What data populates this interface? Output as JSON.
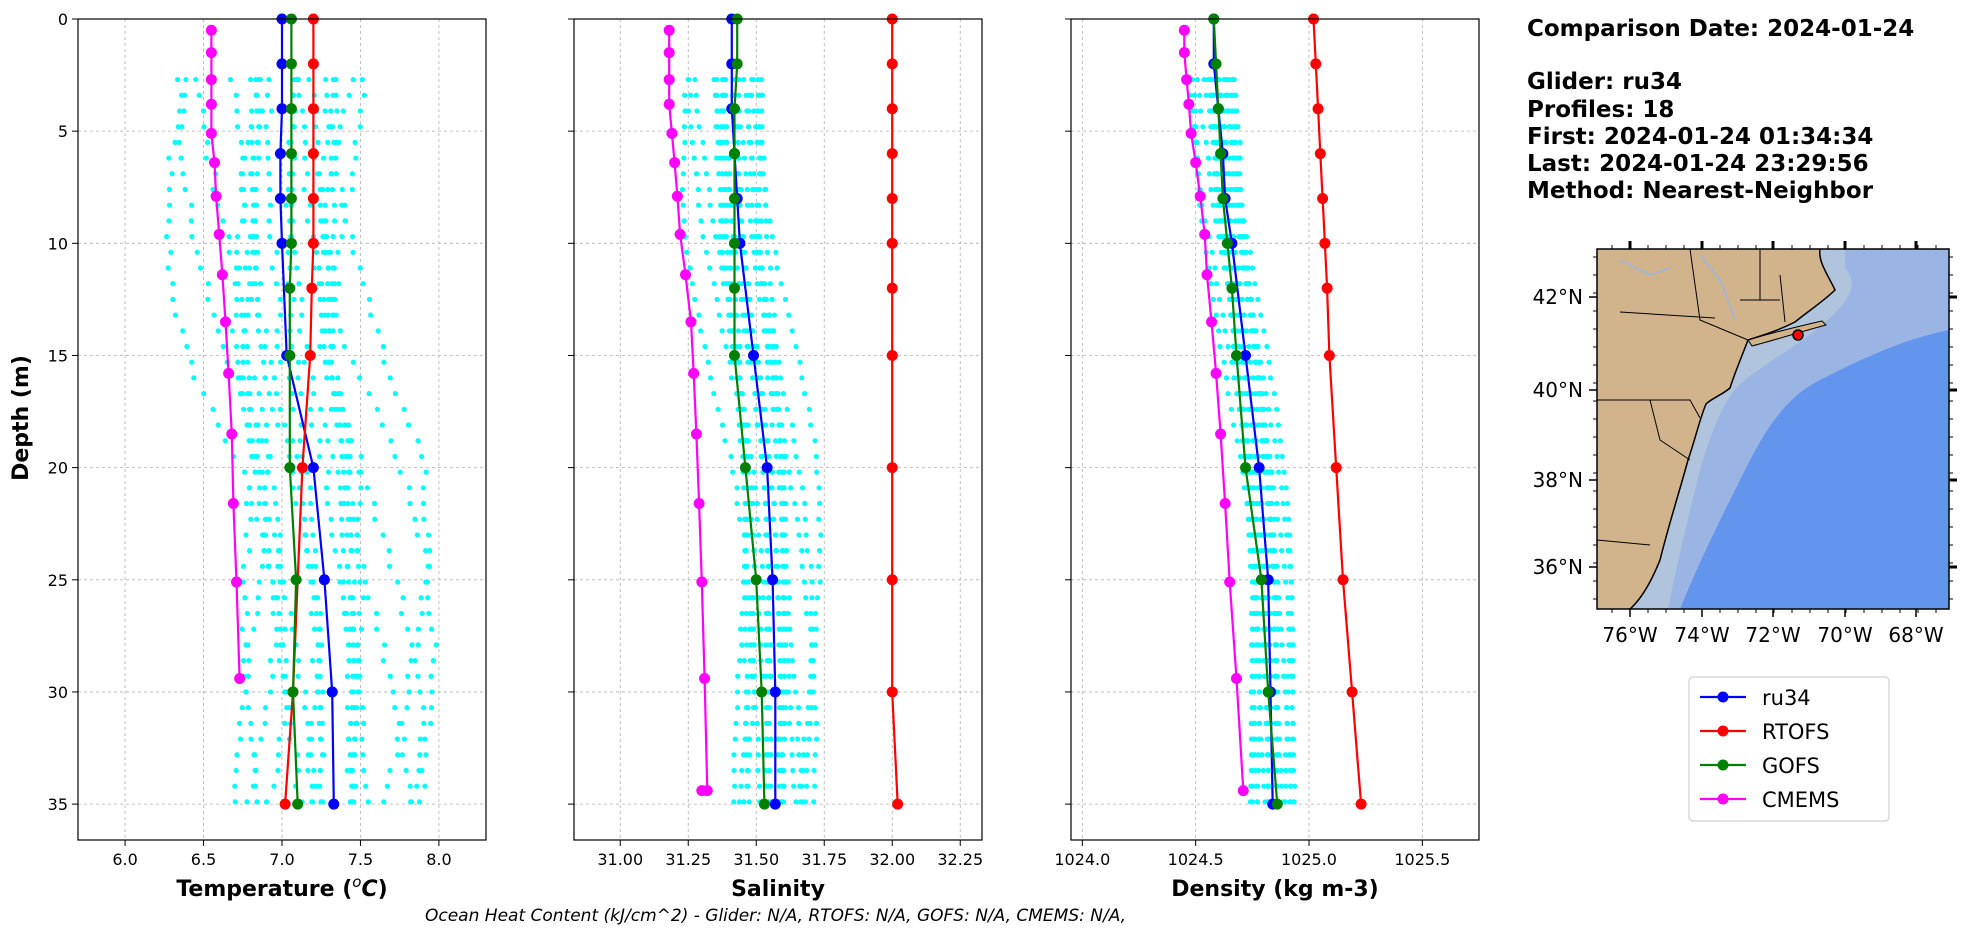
{
  "chart_data": [
    {
      "type": "line",
      "xlabel": "Temperature (°C)",
      "ylabel": "Depth (m)",
      "xlim": [
        5.7,
        8.3
      ],
      "ylim": [
        36.6,
        0
      ],
      "xticks": [
        "6.0",
        "6.5",
        "7.0",
        "7.5",
        "8.0"
      ],
      "yticks": [
        "0",
        "5",
        "10",
        "15",
        "20",
        "25",
        "30",
        "35"
      ],
      "series": [
        {
          "name": "ru34",
          "color": "#0000ff",
          "x": [
            7.0,
            7.0,
            7.0,
            6.99,
            6.99,
            7.0,
            7.03,
            7.2,
            7.27,
            7.32,
            7.33
          ],
          "y": [
            0,
            2,
            4,
            6,
            8,
            10,
            15,
            20,
            25,
            30,
            35
          ]
        },
        {
          "name": "RTOFS",
          "color": "#ff0000",
          "x": [
            7.2,
            7.2,
            7.2,
            7.2,
            7.2,
            7.2,
            7.19,
            7.18,
            7.13,
            7.07,
            7.02
          ],
          "y": [
            0,
            2,
            4,
            6,
            8,
            10,
            12,
            15,
            20,
            30,
            35
          ]
        },
        {
          "name": "GOFS",
          "color": "#008000",
          "x": [
            7.06,
            7.06,
            7.06,
            7.06,
            7.06,
            7.06,
            7.05,
            7.05,
            7.05,
            7.09,
            7.07,
            7.1
          ],
          "y": [
            0,
            2,
            4,
            6,
            8,
            10,
            12,
            15,
            20,
            25,
            30,
            35
          ]
        },
        {
          "name": "CMEMS",
          "color": "#ff00ff",
          "x": [
            6.55,
            6.55,
            6.55,
            6.55,
            6.55,
            6.57,
            6.58,
            6.6,
            6.62,
            6.64,
            6.66,
            6.68,
            6.69,
            6.71,
            6.73
          ],
          "y": [
            0.5,
            1.5,
            2.7,
            3.8,
            5.1,
            6.4,
            7.9,
            9.6,
            11.4,
            13.5,
            15.8,
            18.5,
            21.6,
            25.1,
            29.4
          ]
        }
      ]
    },
    {
      "type": "line",
      "xlabel": "Salinity",
      "xlim": [
        30.83,
        32.33
      ],
      "ylim": [
        36.6,
        0
      ],
      "xticks": [
        "31.00",
        "31.25",
        "31.50",
        "31.75",
        "32.00",
        "32.25"
      ],
      "series": [
        {
          "name": "ru34",
          "color": "#0000ff",
          "x": [
            31.41,
            31.41,
            31.41,
            31.42,
            31.43,
            31.44,
            31.49,
            31.54,
            31.56,
            31.57,
            31.57
          ],
          "y": [
            0,
            2,
            4,
            6,
            8,
            10,
            15,
            20,
            25,
            30,
            35
          ]
        },
        {
          "name": "RTOFS",
          "color": "#ff0000",
          "x": [
            32.0,
            32.0,
            32.0,
            32.0,
            32.0,
            32.0,
            32.0,
            32.0,
            32.0,
            32.0,
            32.0,
            32.02
          ],
          "y": [
            0,
            2,
            4,
            6,
            8,
            10,
            12,
            15,
            20,
            25,
            30,
            35
          ]
        },
        {
          "name": "GOFS",
          "color": "#008000",
          "x": [
            31.43,
            31.43,
            31.42,
            31.42,
            31.42,
            31.42,
            31.42,
            31.42,
            31.46,
            31.5,
            31.52,
            31.53
          ],
          "y": [
            0,
            2,
            4,
            6,
            8,
            10,
            12,
            15,
            20,
            25,
            30,
            35
          ]
        },
        {
          "name": "CMEMS",
          "color": "#ff00ff",
          "x": [
            31.18,
            31.18,
            31.18,
            31.18,
            31.19,
            31.2,
            31.21,
            31.22,
            31.24,
            31.26,
            31.27,
            31.28,
            31.29,
            31.3,
            31.31,
            31.32,
            31.3
          ],
          "y": [
            0.5,
            1.5,
            2.7,
            3.8,
            5.1,
            6.4,
            7.9,
            9.6,
            11.4,
            13.5,
            15.8,
            18.5,
            21.6,
            25.1,
            29.4,
            34.4,
            34.4
          ]
        }
      ]
    },
    {
      "type": "line",
      "xlabel": "Density (kg m-3)",
      "xlim": [
        1023.95,
        1025.75
      ],
      "ylim": [
        36.6,
        0
      ],
      "xticks": [
        "1024.0",
        "1024.5",
        "1025.0",
        "1025.5"
      ],
      "series": [
        {
          "name": "ru34",
          "color": "#0000ff",
          "x": [
            1024.58,
            1024.58,
            1024.6,
            1024.62,
            1024.63,
            1024.66,
            1024.72,
            1024.78,
            1024.82,
            1024.83,
            1024.84
          ],
          "y": [
            0,
            2,
            4,
            6,
            8,
            10,
            15,
            20,
            25,
            30,
            35
          ]
        },
        {
          "name": "RTOFS",
          "color": "#ff0000",
          "x": [
            1025.02,
            1025.03,
            1025.04,
            1025.05,
            1025.06,
            1025.07,
            1025.08,
            1025.09,
            1025.12,
            1025.15,
            1025.19,
            1025.23
          ],
          "y": [
            0,
            2,
            4,
            6,
            8,
            10,
            12,
            15,
            20,
            25,
            30,
            35
          ]
        },
        {
          "name": "GOFS",
          "color": "#008000",
          "x": [
            1024.58,
            1024.59,
            1024.6,
            1024.61,
            1024.62,
            1024.64,
            1024.66,
            1024.68,
            1024.72,
            1024.79,
            1024.82,
            1024.86
          ],
          "y": [
            0,
            2,
            4,
            6,
            8,
            10,
            12,
            15,
            20,
            25,
            30,
            35
          ]
        },
        {
          "name": "CMEMS",
          "color": "#ff00ff",
          "x": [
            1024.45,
            1024.45,
            1024.46,
            1024.47,
            1024.48,
            1024.5,
            1024.52,
            1024.54,
            1024.55,
            1024.57,
            1024.59,
            1024.61,
            1024.63,
            1024.65,
            1024.68,
            1024.71
          ],
          "y": [
            0.5,
            1.5,
            2.7,
            3.8,
            5.1,
            6.4,
            7.9,
            9.6,
            11.4,
            13.5,
            15.8,
            18.5,
            21.6,
            25.1,
            29.4,
            34.4
          ]
        }
      ]
    }
  ],
  "info": {
    "date_line": "Comparison Date: 2024-01-24",
    "glider_line": "Glider: ru34",
    "profiles_line": "Profiles: 18",
    "first_line": "First: 2024-01-24 01:34:34",
    "last_line": "Last: 2024-01-24 23:29:56",
    "method_line": "Method: Nearest-Neighbor"
  },
  "map": {
    "lat_labels": [
      "42°N",
      "40°N",
      "38°N",
      "36°N"
    ],
    "lon_labels": [
      "76°W",
      "74°W",
      "72°W",
      "70°W",
      "68°W"
    ],
    "colors": {
      "land": "#d2b48c",
      "shelf": "#b0c4de",
      "slope": "#9ab5e3",
      "deep": "#6495ed"
    }
  },
  "legend": [
    {
      "label": "ru34",
      "color": "#0000ff"
    },
    {
      "label": "RTOFS",
      "color": "#ff0000"
    },
    {
      "label": "GOFS",
      "color": "#008000"
    },
    {
      "label": "CMEMS",
      "color": "#ff00ff"
    }
  ],
  "footer": "Ocean Heat Content (kJ/cm^2) - Glider: N/A,  RTOFS: N/A,  GOFS: N/A,  CMEMS: N/A,",
  "glider_points_color": "#00ffff"
}
